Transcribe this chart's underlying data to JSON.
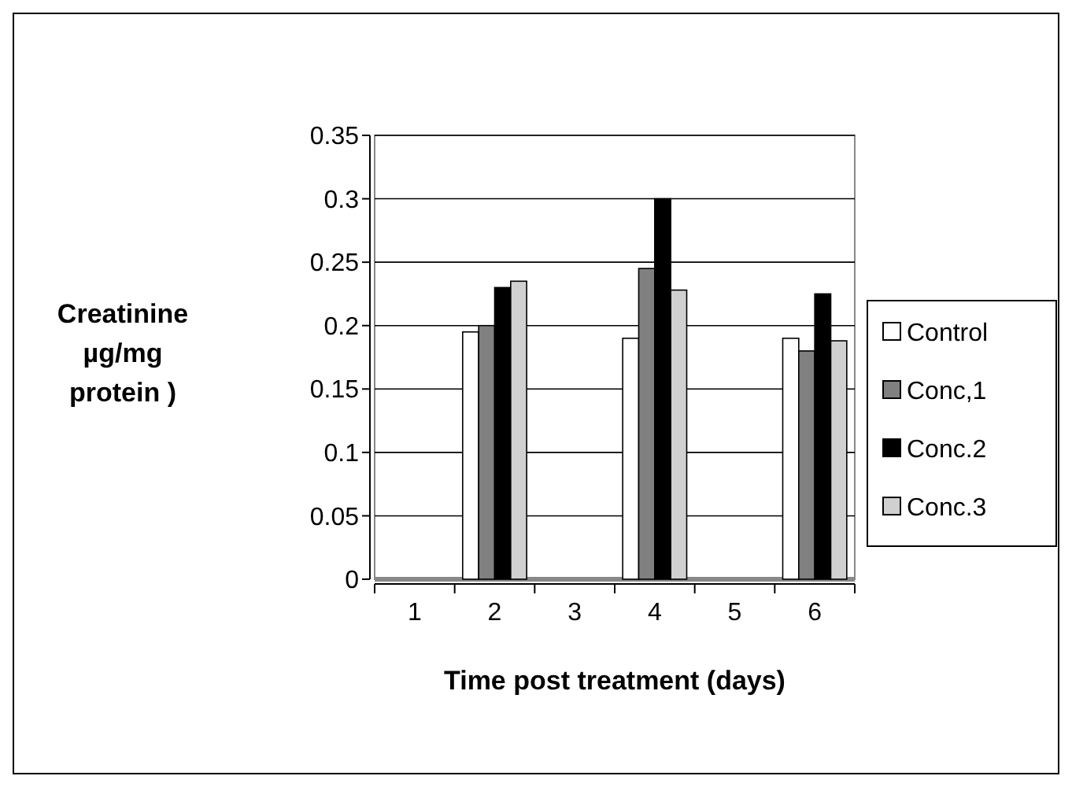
{
  "chart_data": {
    "type": "bar",
    "xlabel": "Time post treatment (days)",
    "ylabel": "Creatinine µg/mg protein )",
    "categories": [
      "1",
      "2",
      "3",
      "4",
      "5",
      "6"
    ],
    "series": [
      {
        "name": "Control",
        "color": "#ffffff",
        "values": [
          null,
          0.195,
          null,
          0.19,
          null,
          0.19
        ]
      },
      {
        "name": "Conc,1",
        "color": "#808080",
        "values": [
          null,
          0.2,
          null,
          0.245,
          null,
          0.18
        ]
      },
      {
        "name": "Conc.2",
        "color": "#000000",
        "values": [
          null,
          0.23,
          null,
          0.3,
          null,
          0.225
        ]
      },
      {
        "name": "Conc.3",
        "color": "#d0d0d0",
        "values": [
          null,
          0.235,
          null,
          0.228,
          null,
          0.188
        ]
      }
    ],
    "ylim": [
      0,
      0.35
    ],
    "yticks": [
      0,
      0.05,
      0.1,
      0.15,
      0.2,
      0.25,
      0.3,
      0.35
    ],
    "grid": "y",
    "legend": "right"
  }
}
